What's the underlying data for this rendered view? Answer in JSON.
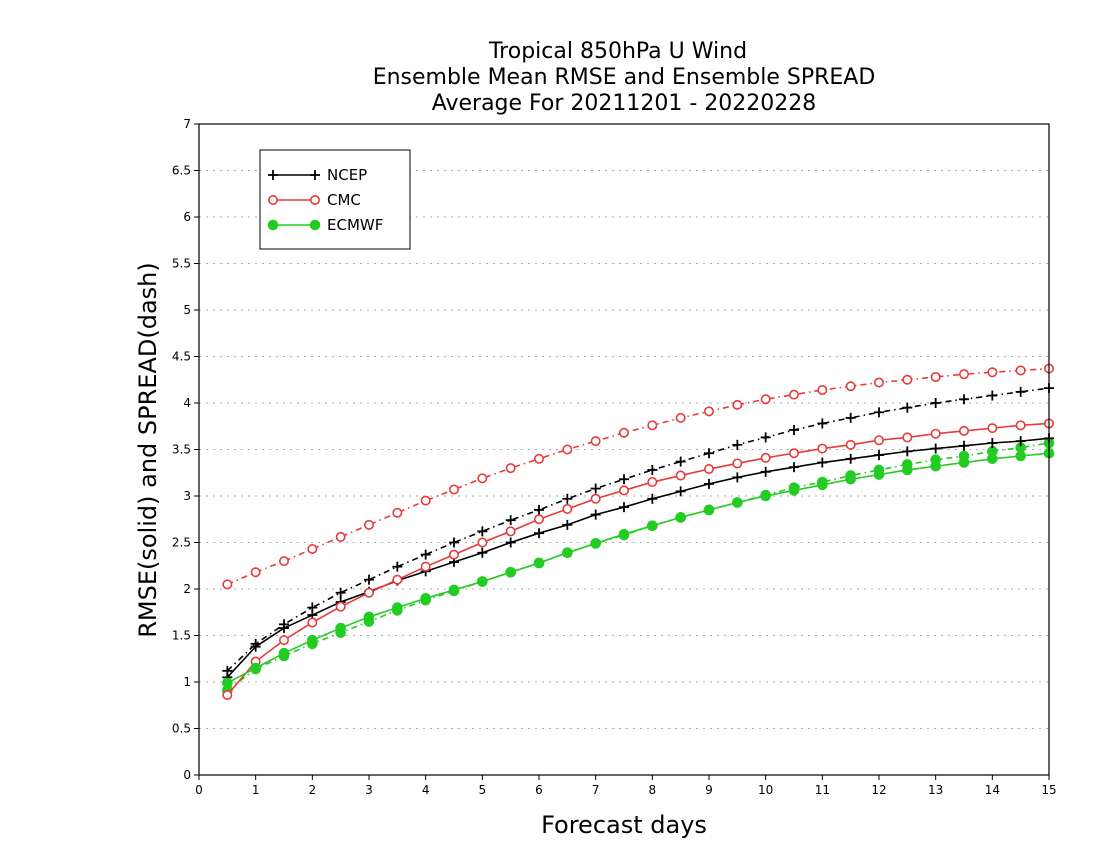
{
  "chart_data": {
    "type": "line",
    "title": [
      "Tropical 850hPa U Wind",
      "Ensemble Mean RMSE and Ensemble SPREAD",
      "Average For 20211201 - 20220228"
    ],
    "xlabel": "Forecast days",
    "ylabel": "RMSE(solid) and SPREAD(dash)",
    "xlim": [
      0,
      15
    ],
    "ylim": [
      0,
      7
    ],
    "xticks": [
      0,
      1,
      2,
      3,
      4,
      5,
      6,
      7,
      8,
      9,
      10,
      11,
      12,
      13,
      14,
      15
    ],
    "yticks": [
      0,
      0.5,
      1,
      1.5,
      2,
      2.5,
      3,
      3.5,
      4,
      4.5,
      5,
      5.5,
      6,
      6.5,
      7
    ],
    "ytick_labels": [
      "0",
      "0.5",
      "1",
      "1.5",
      "2",
      "2.5",
      "3",
      "3.5",
      "4",
      "4.5",
      "5",
      "5.5",
      "6",
      "6.5",
      "7"
    ],
    "grid": "horizontal-dotted",
    "legend_position": "top-left",
    "x": [
      0.5,
      1,
      1.5,
      2,
      2.5,
      3,
      3.5,
      4,
      4.5,
      5,
      5.5,
      6,
      6.5,
      7,
      7.5,
      8,
      8.5,
      9,
      9.5,
      10,
      10.5,
      11,
      11.5,
      12,
      12.5,
      13,
      13.5,
      14,
      14.5,
      15
    ],
    "series": [
      {
        "name": "NCEP",
        "color": "#000000",
        "marker": "plus",
        "style": "solid",
        "values": [
          1.05,
          1.38,
          1.58,
          1.72,
          1.86,
          1.97,
          2.09,
          2.19,
          2.29,
          2.39,
          2.5,
          2.6,
          2.69,
          2.8,
          2.88,
          2.97,
          3.05,
          3.13,
          3.2,
          3.26,
          3.31,
          3.36,
          3.4,
          3.44,
          3.48,
          3.51,
          3.54,
          3.57,
          3.59,
          3.62
        ]
      },
      {
        "name": "NCEP",
        "color": "#000000",
        "marker": "plus",
        "style": "dash",
        "values": [
          1.12,
          1.41,
          1.62,
          1.8,
          1.96,
          2.1,
          2.24,
          2.37,
          2.5,
          2.62,
          2.74,
          2.85,
          2.97,
          3.08,
          3.18,
          3.28,
          3.37,
          3.46,
          3.55,
          3.63,
          3.71,
          3.78,
          3.84,
          3.9,
          3.95,
          4.0,
          4.04,
          4.08,
          4.12,
          4.16
        ]
      },
      {
        "name": "CMC",
        "color": "#e83a3a",
        "marker": "circle-open",
        "style": "solid",
        "values": [
          0.86,
          1.22,
          1.45,
          1.64,
          1.81,
          1.96,
          2.1,
          2.24,
          2.37,
          2.5,
          2.62,
          2.75,
          2.86,
          2.97,
          3.06,
          3.15,
          3.22,
          3.29,
          3.35,
          3.41,
          3.46,
          3.51,
          3.55,
          3.6,
          3.63,
          3.67,
          3.7,
          3.73,
          3.76,
          3.78
        ]
      },
      {
        "name": "CMC",
        "color": "#e83a3a",
        "marker": "circle-open",
        "style": "dash",
        "values": [
          2.05,
          2.18,
          2.3,
          2.43,
          2.56,
          2.69,
          2.82,
          2.95,
          3.07,
          3.19,
          3.3,
          3.4,
          3.5,
          3.59,
          3.68,
          3.76,
          3.84,
          3.91,
          3.98,
          4.04,
          4.09,
          4.14,
          4.18,
          4.22,
          4.25,
          4.28,
          4.31,
          4.33,
          4.35,
          4.37
        ]
      },
      {
        "name": "ECMWF",
        "color": "#22cc22",
        "marker": "circle-filled",
        "style": "solid",
        "values": [
          0.99,
          1.15,
          1.31,
          1.45,
          1.58,
          1.7,
          1.8,
          1.9,
          1.99,
          2.08,
          2.18,
          2.28,
          2.39,
          2.49,
          2.59,
          2.68,
          2.77,
          2.85,
          2.93,
          3.0,
          3.06,
          3.12,
          3.18,
          3.23,
          3.28,
          3.32,
          3.36,
          3.4,
          3.43,
          3.46
        ]
      },
      {
        "name": "ECMWF",
        "color": "#22cc22",
        "marker": "circle-filled",
        "style": "dash",
        "values": [
          0.91,
          1.14,
          1.28,
          1.41,
          1.53,
          1.65,
          1.77,
          1.88,
          1.98,
          2.08,
          2.18,
          2.28,
          2.39,
          2.49,
          2.58,
          2.68,
          2.77,
          2.85,
          2.93,
          3.01,
          3.09,
          3.15,
          3.22,
          3.28,
          3.34,
          3.39,
          3.43,
          3.48,
          3.52,
          3.57
        ]
      }
    ]
  }
}
